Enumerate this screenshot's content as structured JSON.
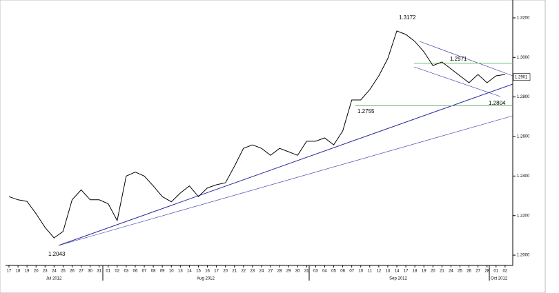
{
  "chart_data": {
    "type": "line",
    "categories": [
      "17",
      "18",
      "19",
      "20",
      "23",
      "24",
      "25",
      "26",
      "27",
      "30",
      "31",
      "01",
      "02",
      "03",
      "06",
      "07",
      "08",
      "09",
      "10",
      "13",
      "14",
      "15",
      "16",
      "17",
      "20",
      "21",
      "22",
      "23",
      "24",
      "27",
      "28",
      "29",
      "30",
      "31",
      "03",
      "04",
      "05",
      "06",
      "07",
      "10",
      "11",
      "12",
      "13",
      "14",
      "17",
      "18",
      "19",
      "20",
      "21",
      "24",
      "25",
      "26",
      "27",
      "28",
      "01",
      "02"
    ],
    "months": [
      "Jul 2012",
      "Aug 2012",
      "Sep 2012",
      "Oct 2012"
    ],
    "series": [
      {
        "color": "#000000",
        "values": [
          1.2296,
          1.228,
          1.2272,
          1.221,
          1.214,
          1.2087,
          1.212,
          1.228,
          1.233,
          1.228,
          1.228,
          1.226,
          1.2175,
          1.24,
          1.242,
          1.24,
          1.235,
          1.2296,
          1.227,
          1.2314,
          1.235,
          1.2296,
          1.234,
          1.2356,
          1.2366,
          1.245,
          1.254,
          1.2558,
          1.254,
          1.2505,
          1.254,
          1.2523,
          1.2505,
          1.2576,
          1.2576,
          1.2593,
          1.2558,
          1.2628,
          1.2785,
          1.2785,
          1.2837,
          1.2907,
          1.2994,
          1.3134,
          1.3116,
          1.3081,
          1.3029,
          1.2959,
          1.2977,
          1.2942,
          1.2907,
          1.2872,
          1.2914,
          1.2872,
          1.2907,
          1.2914
        ]
      }
    ],
    "ylim": [
      1.1948,
      1.3273
    ],
    "yticks": [
      {
        "value": 1.2,
        "label": "1.2000"
      },
      {
        "value": 1.22,
        "label": "1.2200"
      },
      {
        "value": 1.24,
        "label": "1.2400"
      },
      {
        "value": 1.26,
        "label": "1.2600"
      },
      {
        "value": 1.28,
        "label": "1.2800"
      },
      {
        "value": 1.3,
        "label": "1.3000"
      },
      {
        "value": 1.32,
        "label": "1.3200"
      }
    ],
    "annotations": [
      1.3172,
      1.2971,
      1.2755,
      1.2804,
      1.2043
    ],
    "last_price": 1.2901,
    "level_color": "#5cb85c"
  }
}
